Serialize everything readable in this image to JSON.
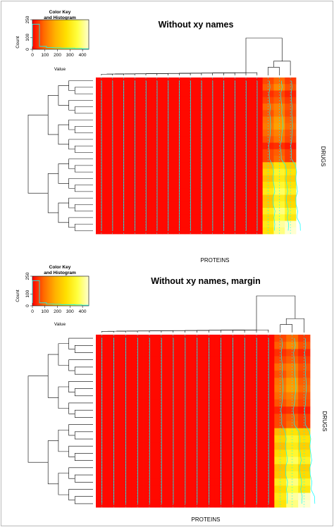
{
  "panels": [
    {
      "title": "Without xy names",
      "xlabel": "PROTEINS",
      "ylabel": "DRUGS"
    },
    {
      "title": "Without xy names, margin",
      "xlabel": "PROTEINS",
      "ylabel": "DRUGS"
    }
  ],
  "color_key": {
    "title_line1": "Color Key",
    "title_line2": "and Histogram",
    "y_axis_label": "Count",
    "y_ticks": [
      "0",
      "100",
      "250"
    ],
    "x_axis_label": "Value",
    "x_ticks": [
      "0",
      "100",
      "200",
      "300",
      "400"
    ],
    "range": [
      0,
      450
    ],
    "gradient": [
      "#ff0000",
      "#ff6a00",
      "#ffb000",
      "#ffe000",
      "#ffff40",
      "#ffffd0"
    ]
  },
  "chart_data": [
    {
      "type": "heatmap",
      "title": "Without xy names",
      "xlabel": "PROTEINS",
      "ylabel": "DRUGS",
      "n_rows": 24,
      "n_cols": 18,
      "values_note": "first 15 protein columns ~0 (red); last 3 columns vary",
      "last_columns": [
        [
          60,
          80,
          40,
          60,
          90,
          70,
          100,
          110,
          90,
          70,
          30,
          60,
          60,
          200,
          250,
          210,
          260,
          300,
          220,
          230,
          310,
          260,
          300,
          280
        ],
        [
          90,
          130,
          60,
          80,
          120,
          110,
          150,
          160,
          120,
          100,
          40,
          80,
          90,
          280,
          330,
          300,
          340,
          380,
          310,
          340,
          400,
          360,
          420,
          400
        ],
        [
          50,
          70,
          30,
          50,
          70,
          60,
          80,
          90,
          70,
          60,
          20,
          50,
          50,
          230,
          280,
          240,
          280,
          320,
          240,
          260,
          330,
          290,
          440,
          450
        ]
      ]
    },
    {
      "type": "heatmap",
      "title": "Without xy names, margin",
      "xlabel": "PROTEINS",
      "ylabel": "DRUGS",
      "n_rows": 24,
      "n_cols": 18
    }
  ],
  "colors": {
    "red": "#ff0000",
    "trace_col": "#00ffff",
    "dendro": "#000000"
  }
}
